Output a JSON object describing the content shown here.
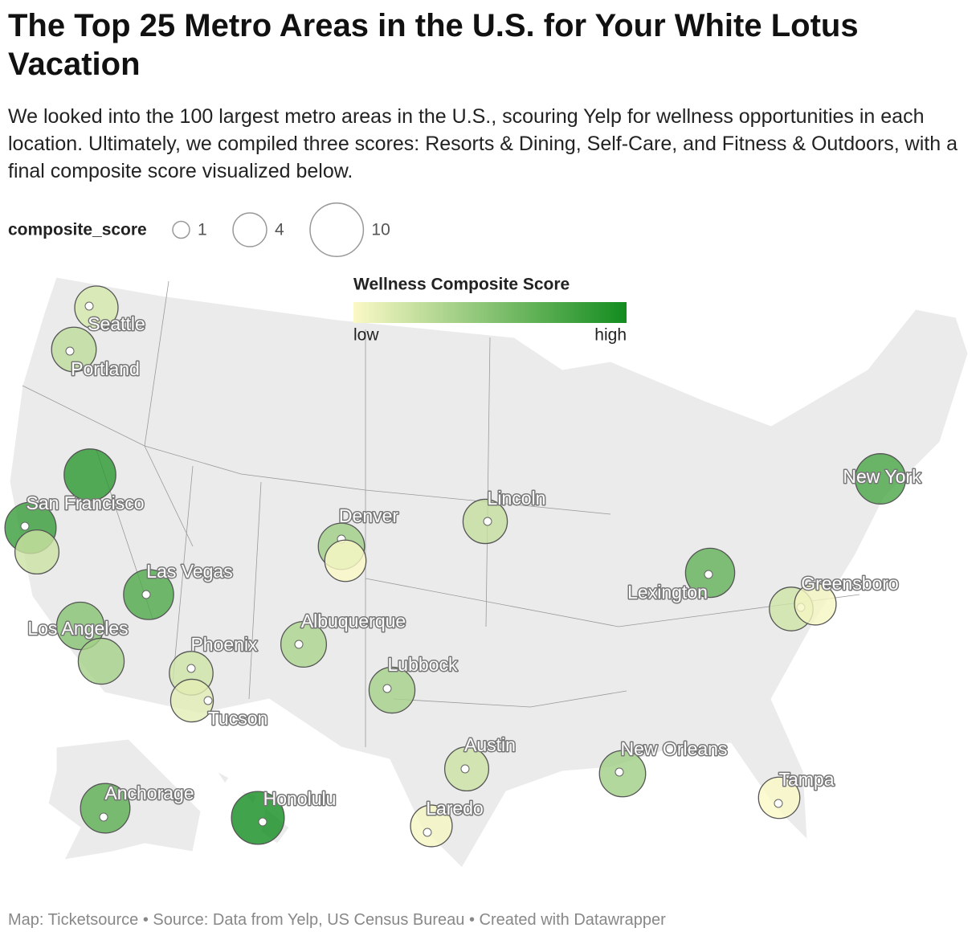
{
  "header": {
    "title": "The Top 25 Metro Areas in the U.S. for Your White Lotus Vacation",
    "description": "We looked into the 100 largest metro areas in the U.S., scouring Yelp for wellness opportunities in each location. Ultimately, we compiled three scores: Resorts & Dining, Self-Care, and Fitness & Outdoors, with a final composite score visualized below."
  },
  "size_legend": {
    "label": "composite_score",
    "values": [
      1,
      4,
      10
    ]
  },
  "color_legend": {
    "title": "Wellness Composite Score",
    "low": "low",
    "high": "high",
    "colors": [
      "#fbf9c6",
      "#128c1e"
    ]
  },
  "cities": [
    {
      "name": "Seattle",
      "score": 6.6
    },
    {
      "name": "Portland",
      "score": 7.0
    },
    {
      "name": null,
      "score": 9.4
    },
    {
      "name": "San Francisco",
      "score": 9.2
    },
    {
      "name": null,
      "score": 6.8
    },
    {
      "name": "Las Vegas",
      "score": 8.8
    },
    {
      "name": "Los Angeles",
      "score": 7.9
    },
    {
      "name": null,
      "score": 7.4
    },
    {
      "name": "Phoenix",
      "score": 6.7
    },
    {
      "name": "Tucson",
      "score": 6.4
    },
    {
      "name": "Albuquerque",
      "score": 7.3
    },
    {
      "name": "Denver",
      "score": 7.5
    },
    {
      "name": null,
      "score": 6.0
    },
    {
      "name": "Lincoln",
      "score": 6.9
    },
    {
      "name": "Lubbock",
      "score": 7.4
    },
    {
      "name": "Austin",
      "score": 6.8
    },
    {
      "name": "Laredo",
      "score": 6.1
    },
    {
      "name": "New Orleans",
      "score": 7.5
    },
    {
      "name": "Tampa",
      "score": 6.0
    },
    {
      "name": "Lexington",
      "score": 8.5
    },
    {
      "name": "Greensboro",
      "score": 6.7
    },
    {
      "name": null,
      "score": 6.1
    },
    {
      "name": "New York",
      "score": 8.9
    },
    {
      "name": "Anchorage",
      "score": 8.6
    },
    {
      "name": "Honolulu",
      "score": 9.8
    }
  ],
  "footer": "Map: Ticketsource • Source: Data from Yelp, US Census Bureau • Created with Datawrapper"
}
